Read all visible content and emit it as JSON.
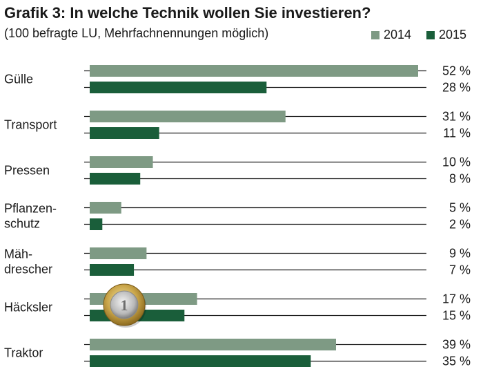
{
  "chart_data": {
    "type": "bar",
    "orientation": "horizontal",
    "title": "Grafik 3: In welche Technik wollen Sie investieren?",
    "subtitle": "(100 befragte LU, Mehrfachnennungen möglich)",
    "categories": [
      [
        "Gülle"
      ],
      [
        "Transport"
      ],
      [
        "Pressen"
      ],
      [
        "Pflanzen-",
        "schutz"
      ],
      [
        "Mäh-",
        "drescher"
      ],
      [
        "Häcksler"
      ],
      [
        "Traktor"
      ]
    ],
    "series": [
      {
        "name": "2014",
        "color": "#7e9a84",
        "values": [
          52,
          31,
          10,
          5,
          9,
          17,
          39
        ],
        "labels": [
          "52 %",
          "31 %",
          "10 %",
          "5 %",
          "9 %",
          "17 %",
          "39 %"
        ]
      },
      {
        "name": "2015",
        "color": "#1a5e3a",
        "values": [
          28,
          11,
          8,
          2,
          7,
          15,
          35
        ],
        "labels": [
          "28 %",
          "11 %",
          "8 %",
          "2 %",
          "7 %",
          "15 %",
          "35 %"
        ]
      }
    ],
    "xlim": [
      0,
      52
    ],
    "grid": false,
    "legend": "top-right"
  },
  "decoration": {
    "coin_icon": "euro-coin"
  }
}
